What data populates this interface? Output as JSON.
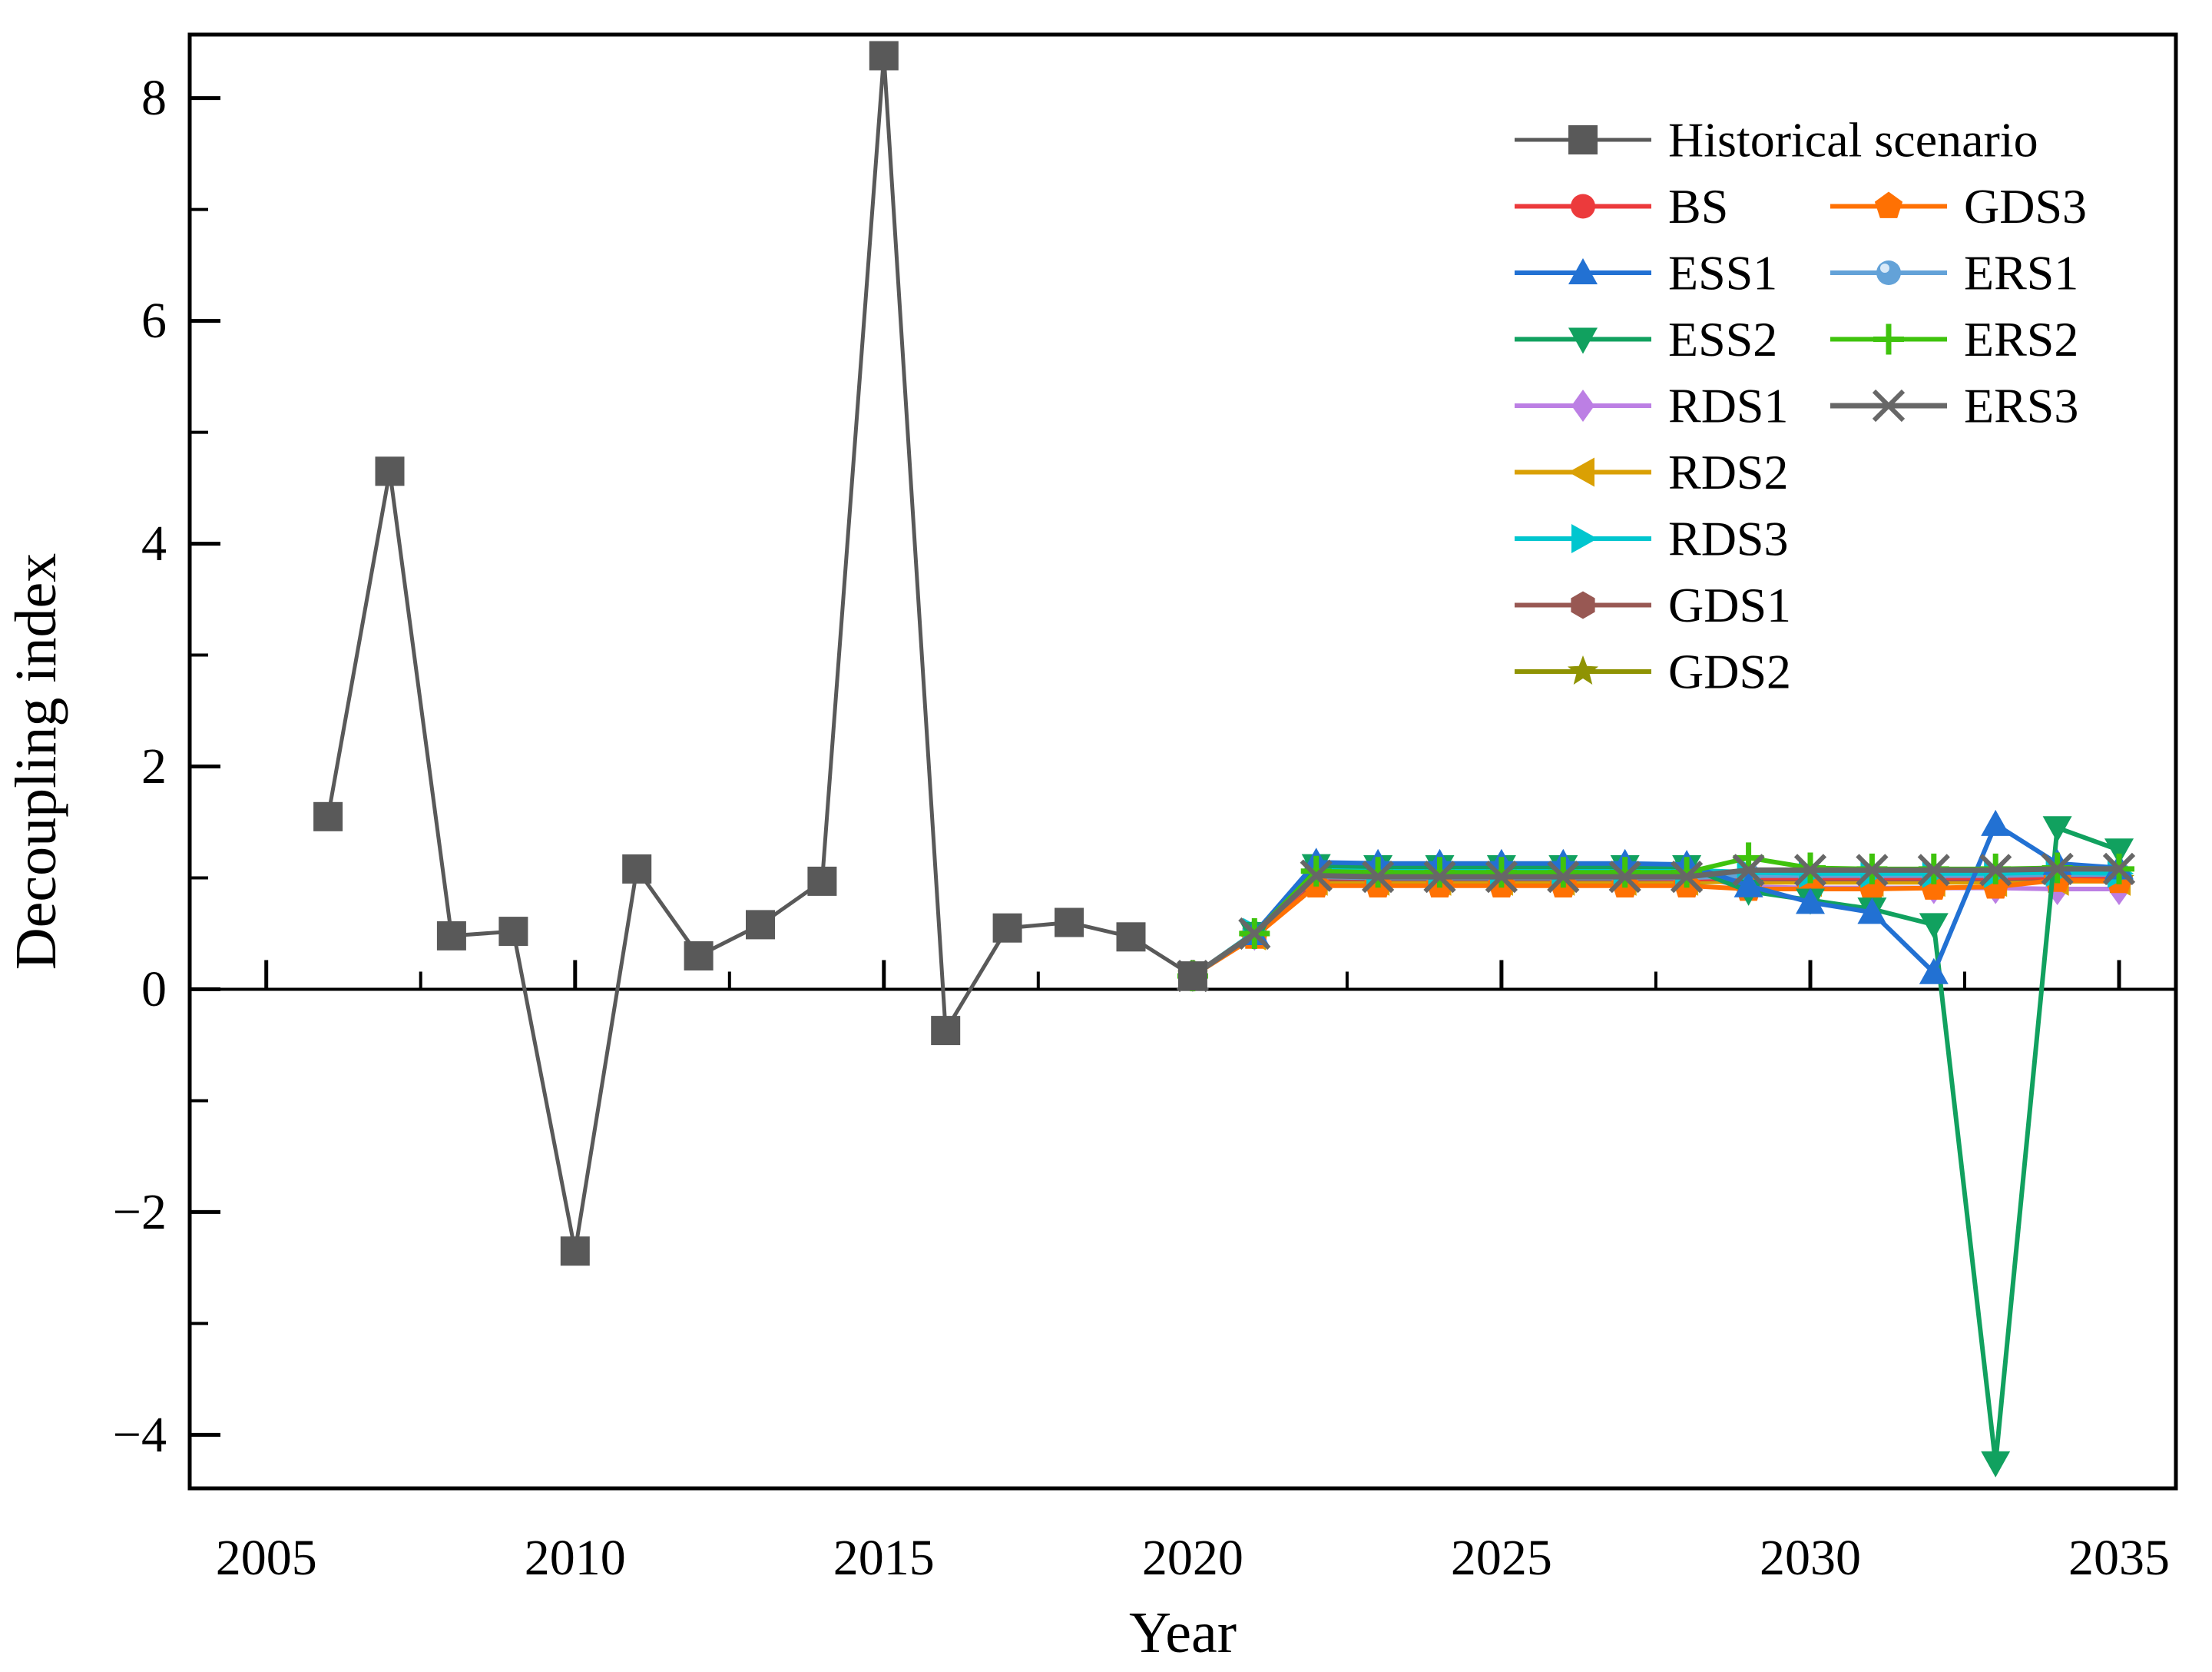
{
  "chart_data": {
    "type": "line",
    "title": "",
    "xlabel": "Year",
    "ylabel": "Decoupling index",
    "xlim": [
      2003.76,
      2035.92
    ],
    "ylim": [
      -4.48,
      8.57
    ],
    "grid": false,
    "legend_position": "upper right, two columns, no frame",
    "x_ticks": [
      {
        "v": 2005,
        "label": "2005"
      },
      {
        "v": 2010,
        "label": "2010"
      },
      {
        "v": 2015,
        "label": "2015"
      },
      {
        "v": 2020,
        "label": "2020"
      },
      {
        "v": 2025,
        "label": "2025"
      },
      {
        "v": 2030,
        "label": "2030"
      },
      {
        "v": 2035,
        "label": "2035"
      }
    ],
    "x_ticks_minor": [
      2007.5,
      2012.5,
      2017.5,
      2022.5,
      2027.5,
      2032.5
    ],
    "y_ticks": [
      {
        "v": 8,
        "label": "8"
      },
      {
        "v": 6,
        "label": "6"
      },
      {
        "v": 4,
        "label": "4"
      },
      {
        "v": 2,
        "label": "2"
      },
      {
        "v": 0,
        "label": "0"
      },
      {
        "v": -2,
        "label": "−2"
      },
      {
        "v": -4,
        "label": "−4"
      }
    ],
    "y_ticks_minor": [
      7,
      5,
      3,
      1,
      -1,
      -3
    ],
    "series": [
      {
        "name": "Historical scenario",
        "color": "#595959",
        "marker": "square",
        "line_width": 5,
        "x": [
          2006,
          2007,
          2008,
          2009,
          2010,
          2011,
          2012,
          2013,
          2014,
          2015,
          2016,
          2017,
          2018,
          2019,
          2020
        ],
        "y": [
          1.55,
          4.65,
          0.48,
          0.52,
          -2.35,
          1.08,
          0.3,
          0.58,
          0.97,
          8.38,
          -0.37,
          0.55,
          0.6,
          0.47,
          0.12
        ]
      },
      {
        "name": "BS",
        "color": "#ec3a3c",
        "marker": "circle",
        "line_width": 6,
        "x": [
          2020,
          2021,
          2022,
          2023,
          2024,
          2025,
          2026,
          2027,
          2028,
          2029,
          2030,
          2031,
          2032,
          2033,
          2034,
          2035
        ],
        "y": [
          0.12,
          0.49,
          1.0,
          1.0,
          1.0,
          1.0,
          1.0,
          1.0,
          0.99,
          1.0,
          1.0,
          1.0,
          1.0,
          1.0,
          1.01,
          1.01
        ]
      },
      {
        "name": "ESS1",
        "color": "#2271d3",
        "marker": "triangle-up",
        "line_width": 6,
        "x": [
          2020,
          2021,
          2022,
          2023,
          2024,
          2025,
          2026,
          2027,
          2028,
          2029,
          2030,
          2031,
          2032,
          2033,
          2034,
          2035
        ],
        "y": [
          0.12,
          0.5,
          1.14,
          1.13,
          1.13,
          1.13,
          1.13,
          1.13,
          1.12,
          0.93,
          0.78,
          0.69,
          0.15,
          1.48,
          1.13,
          1.09
        ]
      },
      {
        "name": "ESS2",
        "color": "#11a15f",
        "marker": "triangle-down",
        "line_width": 6,
        "x": [
          2020,
          2021,
          2022,
          2023,
          2024,
          2025,
          2026,
          2027,
          2028,
          2029,
          2030,
          2031,
          2032,
          2033,
          2034,
          2035
        ],
        "y": [
          0.12,
          0.5,
          1.11,
          1.1,
          1.1,
          1.1,
          1.1,
          1.1,
          1.1,
          0.88,
          0.8,
          0.72,
          0.58,
          -4.25,
          1.45,
          1.25
        ]
      },
      {
        "name": "RDS1",
        "color": "#bc7fe4",
        "marker": "diamond",
        "line_width": 6,
        "x": [
          2020,
          2021,
          2022,
          2023,
          2024,
          2025,
          2026,
          2027,
          2028,
          2029,
          2030,
          2031,
          2032,
          2033,
          2034,
          2035
        ],
        "y": [
          0.12,
          0.49,
          1.03,
          1.02,
          1.02,
          1.02,
          1.02,
          1.02,
          1.02,
          0.92,
          0.91,
          0.91,
          0.91,
          0.91,
          0.9,
          0.9
        ]
      },
      {
        "name": "RDS2",
        "color": "#daa004",
        "marker": "triangle-left",
        "line_width": 6,
        "x": [
          2020,
          2021,
          2022,
          2023,
          2024,
          2025,
          2026,
          2027,
          2028,
          2029,
          2030,
          2031,
          2032,
          2033,
          2034,
          2035
        ],
        "y": [
          0.12,
          0.48,
          0.97,
          0.97,
          0.97,
          0.97,
          0.97,
          0.97,
          0.97,
          0.96,
          0.96,
          0.96,
          0.96,
          0.96,
          0.97,
          0.97
        ]
      },
      {
        "name": "RDS3",
        "color": "#00c6cf",
        "marker": "triangle-right",
        "line_width": 6,
        "x": [
          2020,
          2021,
          2022,
          2023,
          2024,
          2025,
          2026,
          2027,
          2028,
          2029,
          2030,
          2031,
          2032,
          2033,
          2034,
          2035
        ],
        "y": [
          0.12,
          0.51,
          1.08,
          1.07,
          1.07,
          1.07,
          1.07,
          1.07,
          1.07,
          1.05,
          1.04,
          1.04,
          1.04,
          1.04,
          1.05,
          1.04
        ]
      },
      {
        "name": "GDS1",
        "color": "#985853",
        "marker": "hexagon",
        "line_width": 6,
        "x": [
          2020,
          2021,
          2022,
          2023,
          2024,
          2025,
          2026,
          2027,
          2028,
          2029,
          2030,
          2031,
          2032,
          2033,
          2034,
          2035
        ],
        "y": [
          0.12,
          0.49,
          0.99,
          0.99,
          0.99,
          0.99,
          0.99,
          0.99,
          0.99,
          0.99,
          0.99,
          0.99,
          0.99,
          0.99,
          1.0,
          1.0
        ]
      },
      {
        "name": "GDS2",
        "color": "#8f9303",
        "marker": "star",
        "line_width": 6,
        "x": [
          2020,
          2021,
          2022,
          2023,
          2024,
          2025,
          2026,
          2027,
          2028,
          2029,
          2030,
          2031,
          2032,
          2033,
          2034,
          2035
        ],
        "y": [
          0.12,
          0.48,
          0.96,
          0.96,
          0.96,
          0.96,
          0.96,
          0.96,
          0.96,
          0.97,
          0.97,
          0.97,
          0.97,
          0.97,
          0.98,
          0.98
        ]
      },
      {
        "name": "GDS3",
        "color": "#ff7103",
        "marker": "pentagon",
        "line_width": 6,
        "x": [
          2020,
          2021,
          2022,
          2023,
          2024,
          2025,
          2026,
          2027,
          2028,
          2029,
          2030,
          2031,
          2032,
          2033,
          2034,
          2035
        ],
        "y": [
          0.12,
          0.47,
          0.93,
          0.93,
          0.93,
          0.93,
          0.93,
          0.93,
          0.93,
          0.9,
          0.9,
          0.9,
          0.91,
          0.92,
          0.98,
          0.97
        ]
      },
      {
        "name": "ERS1",
        "color": "#63a2d8",
        "marker": "sphere",
        "line_width": 6,
        "x": [
          2020,
          2021,
          2022,
          2023,
          2024,
          2025,
          2026,
          2027,
          2028,
          2029,
          2030,
          2031,
          2032,
          2033,
          2034,
          2035
        ],
        "y": [
          0.12,
          0.5,
          1.01,
          1.0,
          1.0,
          1.0,
          1.0,
          1.0,
          1.0,
          1.02,
          1.02,
          1.02,
          1.02,
          1.02,
          1.03,
          1.03
        ]
      },
      {
        "name": "ERS2",
        "color": "#3fc30d",
        "marker": "plus",
        "line_width": 6,
        "x": [
          2020,
          2021,
          2022,
          2023,
          2024,
          2025,
          2026,
          2027,
          2028,
          2029,
          2030,
          2031,
          2032,
          2033,
          2034,
          2035
        ],
        "y": [
          0.12,
          0.5,
          1.06,
          1.05,
          1.05,
          1.05,
          1.05,
          1.05,
          1.05,
          1.18,
          1.09,
          1.08,
          1.08,
          1.08,
          1.09,
          1.08
        ]
      },
      {
        "name": "ERS3",
        "color": "#676767",
        "marker": "x",
        "line_width": 7,
        "x": [
          2020,
          2021,
          2022,
          2023,
          2024,
          2025,
          2026,
          2027,
          2028,
          2029,
          2030,
          2031,
          2032,
          2033,
          2034,
          2035
        ],
        "y": [
          0.12,
          0.5,
          1.02,
          1.01,
          1.01,
          1.01,
          1.01,
          1.01,
          1.01,
          1.07,
          1.07,
          1.07,
          1.07,
          1.07,
          1.08,
          1.08
        ]
      }
    ],
    "draw_order": [
      "RDS1",
      "GDS2",
      "RDS2",
      "GDS1",
      "BS",
      "ERS1",
      "GDS3",
      "RDS3",
      "ESS2",
      "ESS1",
      "ERS2",
      "ERS3",
      "Historical scenario"
    ],
    "legend": {
      "col1": [
        "Historical scenario",
        "BS",
        "ESS1",
        "ESS2",
        "RDS1",
        "RDS2",
        "RDS3",
        "GDS1",
        "GDS2"
      ],
      "col2": [
        "GDS3",
        "ERS1",
        "ERS2",
        "ERS3"
      ]
    },
    "axis_color": "#000000",
    "background_color": "#ffffff"
  }
}
